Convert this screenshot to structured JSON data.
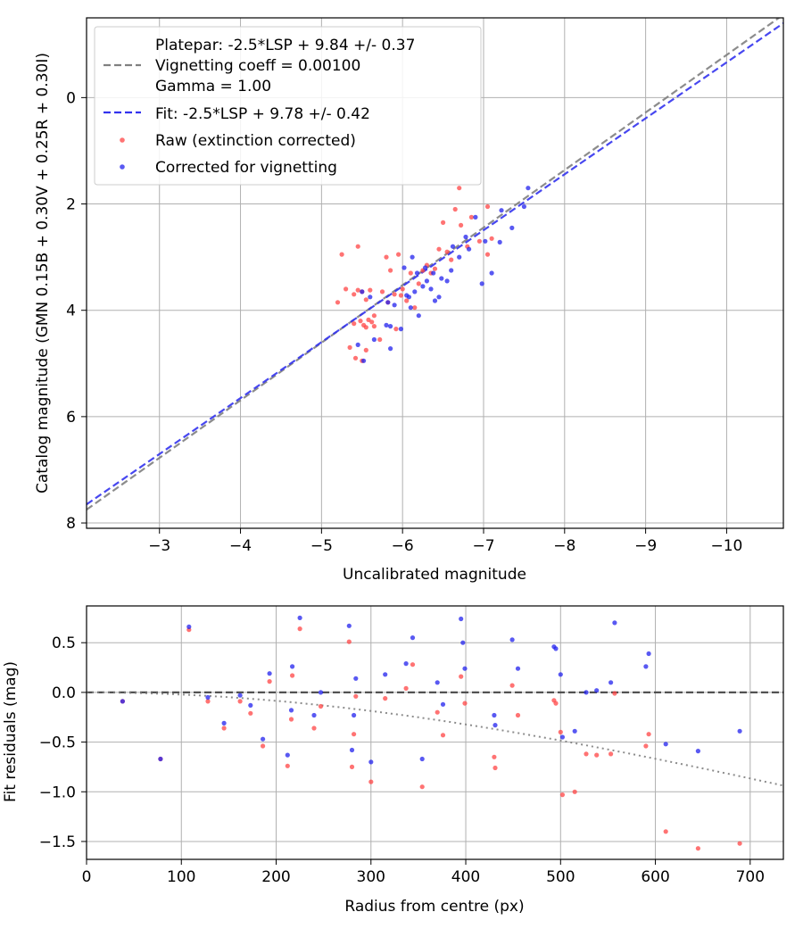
{
  "chart_data": [
    {
      "type": "scatter",
      "title": "",
      "xlabel": "Uncalibrated magnitude",
      "ylabel": "Catalog magnitude (GMN 0.15B + 0.30V + 0.25R + 0.30I)",
      "xlim": [
        -2.1,
        -10.7
      ],
      "ylim": [
        8.1,
        -1.5
      ],
      "x_inverted": true,
      "y_inverted": true,
      "grid": true,
      "legend_position": "top-left",
      "xticks": [
        -3,
        -4,
        -5,
        -6,
        -7,
        -8,
        -9,
        -10
      ],
      "xtick_labels": [
        "−3",
        "−4",
        "−5",
        "−6",
        "−7",
        "−8",
        "−9",
        "−10"
      ],
      "yticks": [
        0,
        2,
        4,
        6,
        8
      ],
      "ytick_labels": [
        "0",
        "2",
        "4",
        "6",
        "8"
      ],
      "legend": {
        "platepar_line1": "Platepar: -2.5*LSP + 9.84 +/- 0.37",
        "platepar_line2": "Vignetting coeff = 0.00100",
        "platepar_line3": "Gamma = 1.00",
        "fit": "Fit: -2.5*LSP + 9.78 +/- 0.42",
        "raw": "Raw (extinction corrected)",
        "corrected": "Corrected for vignetting"
      },
      "lines": [
        {
          "name": "Platepar",
          "color": "#808080",
          "style": "dashed",
          "x": [
            -2.1,
            -10.7
          ],
          "y": [
            7.75,
            -1.56
          ]
        },
        {
          "name": "Fit",
          "color": "#3333ee",
          "style": "dashed",
          "x": [
            -2.1,
            -10.7
          ],
          "y": [
            7.65,
            -1.4
          ]
        }
      ],
      "series": [
        {
          "name": "Raw (extinction corrected)",
          "color": "#ff4444",
          "points": [
            [
              -5.25,
              2.95
            ],
            [
              -5.45,
              2.8
            ],
            [
              -5.3,
              3.6
            ],
            [
              -5.2,
              3.85
            ],
            [
              -5.4,
              3.7
            ],
            [
              -5.45,
              3.62
            ],
            [
              -5.5,
              3.65
            ],
            [
              -5.55,
              3.8
            ],
            [
              -5.6,
              3.62
            ],
            [
              -5.48,
              4.2
            ],
            [
              -5.52,
              4.28
            ],
            [
              -5.55,
              4.32
            ],
            [
              -5.58,
              4.18
            ],
            [
              -5.62,
              4.22
            ],
            [
              -5.65,
              4.3
            ],
            [
              -5.4,
              4.25
            ],
            [
              -5.42,
              4.9
            ],
            [
              -5.5,
              4.95
            ],
            [
              -5.55,
              4.75
            ],
            [
              -5.35,
              4.7
            ],
            [
              -5.75,
              3.65
            ],
            [
              -5.8,
              3.0
            ],
            [
              -5.85,
              3.25
            ],
            [
              -5.9,
              3.7
            ],
            [
              -5.95,
              2.95
            ],
            [
              -5.98,
              3.72
            ],
            [
              -6.05,
              3.82
            ],
            [
              -6.1,
              3.3
            ],
            [
              -6.15,
              3.95
            ],
            [
              -6.25,
              3.25
            ],
            [
              -6.3,
              3.15
            ],
            [
              -6.35,
              3.3
            ],
            [
              -6.4,
              3.22
            ],
            [
              -6.45,
              2.85
            ],
            [
              -6.5,
              2.35
            ],
            [
              -6.55,
              2.9
            ],
            [
              -6.6,
              3.05
            ],
            [
              -6.65,
              2.1
            ],
            [
              -6.7,
              1.7
            ],
            [
              -6.72,
              2.4
            ],
            [
              -6.8,
              2.8
            ],
            [
              -6.85,
              2.25
            ],
            [
              -6.95,
              2.7
            ],
            [
              -7.05,
              2.05
            ],
            [
              -7.05,
              2.95
            ],
            [
              -7.1,
              2.65
            ],
            [
              -5.65,
              4.1
            ],
            [
              -5.72,
              4.55
            ],
            [
              -5.92,
              4.35
            ],
            [
              -6.0,
              3.6
            ],
            [
              -6.2,
              3.5
            ],
            [
              -5.82,
              3.85
            ]
          ]
        },
        {
          "name": "Corrected for vignetting",
          "color": "#2222ee",
          "points": [
            [
              -5.45,
              4.65
            ],
            [
              -5.52,
              4.95
            ],
            [
              -5.5,
              3.65
            ],
            [
              -5.6,
              3.75
            ],
            [
              -5.65,
              4.55
            ],
            [
              -5.8,
              4.28
            ],
            [
              -5.85,
              4.72
            ],
            [
              -5.82,
              3.85
            ],
            [
              -5.9,
              3.9
            ],
            [
              -5.98,
              4.35
            ],
            [
              -6.02,
              3.2
            ],
            [
              -6.05,
              3.72
            ],
            [
              -6.08,
              3.75
            ],
            [
              -6.1,
              3.95
            ],
            [
              -6.12,
              3.0
            ],
            [
              -6.15,
              3.65
            ],
            [
              -6.18,
              3.3
            ],
            [
              -6.2,
              4.1
            ],
            [
              -6.28,
              3.2
            ],
            [
              -6.3,
              3.45
            ],
            [
              -6.35,
              3.6
            ],
            [
              -6.38,
              3.3
            ],
            [
              -6.4,
              3.82
            ],
            [
              -6.45,
              3.75
            ],
            [
              -6.48,
              3.4
            ],
            [
              -6.55,
              3.45
            ],
            [
              -6.6,
              3.25
            ],
            [
              -6.62,
              2.8
            ],
            [
              -6.7,
              3.0
            ],
            [
              -6.78,
              2.62
            ],
            [
              -6.82,
              2.85
            ],
            [
              -6.9,
              2.25
            ],
            [
              -6.98,
              3.5
            ],
            [
              -7.02,
              2.7
            ],
            [
              -7.1,
              3.3
            ],
            [
              -7.2,
              2.72
            ],
            [
              -7.22,
              2.12
            ],
            [
              -7.5,
              2.05
            ],
            [
              -7.55,
              1.7
            ],
            [
              -7.35,
              2.45
            ],
            [
              -5.85,
              4.3
            ],
            [
              -6.25,
              3.55
            ]
          ]
        }
      ]
    },
    {
      "type": "scatter",
      "title": "",
      "xlabel": "Radius from centre (px)",
      "ylabel": "Fit residuals (mag)",
      "xlim": [
        0,
        735
      ],
      "ylim": [
        -1.68,
        0.87
      ],
      "grid": true,
      "xticks": [
        0,
        100,
        200,
        300,
        400,
        500,
        600,
        700
      ],
      "xtick_labels": [
        "0",
        "100",
        "200",
        "300",
        "400",
        "500",
        "600",
        "700"
      ],
      "yticks": [
        0.5,
        0.0,
        -0.5,
        -1.0,
        -1.5
      ],
      "ytick_labels": [
        "0.5",
        "0.0",
        "−0.5",
        "−1.0",
        "−1.5"
      ],
      "lines": [
        {
          "name": "zero",
          "color": "#444444",
          "style": "dashed",
          "x": [
            0,
            735
          ],
          "y": [
            0,
            0
          ]
        },
        {
          "name": "vignetting model",
          "color": "#808080",
          "style": "dotted",
          "curve": "vignetting",
          "coeff": 0.001
        }
      ],
      "series": [
        {
          "name": "Raw",
          "color": "#ff4444",
          "points": [
            [
              38,
              -0.09
            ],
            [
              78,
              -0.67
            ],
            [
              108,
              0.63
            ],
            [
              128,
              -0.09
            ],
            [
              145,
              -0.36
            ],
            [
              162,
              -0.09
            ],
            [
              173,
              -0.21
            ],
            [
              186,
              -0.54
            ],
            [
              193,
              0.11
            ],
            [
              212,
              -0.74
            ],
            [
              216,
              -0.27
            ],
            [
              217,
              0.17
            ],
            [
              225,
              0.64
            ],
            [
              240,
              -0.36
            ],
            [
              247,
              -0.14
            ],
            [
              277,
              0.51
            ],
            [
              280,
              -0.75
            ],
            [
              282,
              -0.42
            ],
            [
              284,
              -0.04
            ],
            [
              300,
              -0.9
            ],
            [
              315,
              -0.06
            ],
            [
              337,
              0.04
            ],
            [
              344,
              0.28
            ],
            [
              354,
              -0.95
            ],
            [
              370,
              -0.2
            ],
            [
              376,
              -0.43
            ],
            [
              395,
              0.16
            ],
            [
              399,
              -0.11
            ],
            [
              430,
              -0.65
            ],
            [
              431,
              -0.76
            ],
            [
              449,
              0.07
            ],
            [
              455,
              -0.23
            ],
            [
              493,
              -0.08
            ],
            [
              495,
              -0.11
            ],
            [
              500,
              -0.4
            ],
            [
              502,
              -1.03
            ],
            [
              515,
              -1.0
            ],
            [
              527,
              -0.62
            ],
            [
              538,
              -0.63
            ],
            [
              553,
              -0.62
            ],
            [
              557,
              -0.01
            ],
            [
              590,
              -0.54
            ],
            [
              593,
              -0.42
            ],
            [
              611,
              -1.4
            ],
            [
              645,
              -1.57
            ],
            [
              689,
              -1.52
            ]
          ]
        },
        {
          "name": "Corrected",
          "color": "#2222ee",
          "points": [
            [
              38,
              -0.09
            ],
            [
              78,
              -0.67
            ],
            [
              108,
              0.66
            ],
            [
              128,
              -0.05
            ],
            [
              145,
              -0.31
            ],
            [
              162,
              -0.03
            ],
            [
              173,
              -0.13
            ],
            [
              186,
              -0.47
            ],
            [
              193,
              0.19
            ],
            [
              212,
              -0.63
            ],
            [
              216,
              -0.18
            ],
            [
              217,
              0.26
            ],
            [
              225,
              0.75
            ],
            [
              240,
              -0.23
            ],
            [
              247,
              0.0
            ],
            [
              277,
              0.67
            ],
            [
              280,
              -0.58
            ],
            [
              282,
              -0.23
            ],
            [
              284,
              0.14
            ],
            [
              300,
              -0.7
            ],
            [
              315,
              0.18
            ],
            [
              337,
              0.29
            ],
            [
              344,
              0.55
            ],
            [
              354,
              -0.67
            ],
            [
              370,
              0.1
            ],
            [
              376,
              -0.12
            ],
            [
              395,
              0.74
            ],
            [
              397,
              0.5
            ],
            [
              399,
              0.24
            ],
            [
              430,
              -0.23
            ],
            [
              431,
              -0.33
            ],
            [
              449,
              0.53
            ],
            [
              455,
              0.24
            ],
            [
              493,
              0.46
            ],
            [
              495,
              0.44
            ],
            [
              500,
              0.18
            ],
            [
              502,
              -0.45
            ],
            [
              515,
              -0.39
            ],
            [
              527,
              0.0
            ],
            [
              538,
              0.02
            ],
            [
              553,
              0.1
            ],
            [
              557,
              0.7
            ],
            [
              590,
              0.26
            ],
            [
              593,
              0.39
            ],
            [
              611,
              -0.52
            ],
            [
              645,
              -0.59
            ],
            [
              689,
              -0.39
            ]
          ]
        }
      ]
    }
  ]
}
